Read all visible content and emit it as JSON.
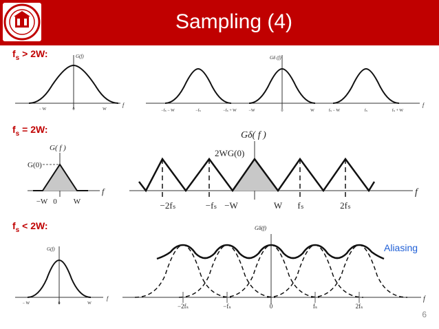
{
  "header": {
    "title": "Sampling (4)",
    "bg_color": "#c00000",
    "logo_icon": "university-seal-icon"
  },
  "cases": [
    {
      "label_main": "f",
      "label_sub": "s",
      "label_rest": " > 2W:"
    },
    {
      "label_main": "f",
      "label_sub": "s",
      "label_rest": " = 2W:"
    },
    {
      "label_main": "f",
      "label_sub": "s",
      "label_rest": " < 2W:"
    }
  ],
  "case1": {
    "left": {
      "ylabel": "G(f)",
      "xlabel": "f",
      "ticks": [
        "− W",
        "0",
        "W"
      ]
    },
    "right": {
      "ylabel": "Gδ (f)",
      "xlabel": "f",
      "ticks": [
        "−fₛ − W",
        "−fₛ",
        "−fₛ + W",
        "−W",
        "0",
        "W",
        "fₛ − W",
        "fₛ",
        "fₛ + W"
      ]
    }
  },
  "case2": {
    "left": {
      "ylabel": "G( f )",
      "peak_label": "G(0)",
      "xlabel": "f",
      "ticks": [
        "−W",
        "0",
        "W"
      ]
    },
    "right": {
      "ylabel": "Gδ( f )",
      "peak_label": "2WG(0)",
      "xlabel": "f",
      "ticks": [
        "−2fₛ",
        "−fₛ",
        "−W",
        "W",
        "fₛ",
        "2fₛ"
      ]
    }
  },
  "case3": {
    "left": {
      "ylabel": "G(f)",
      "xlabel": "f",
      "ticks": [
        "− W",
        "0",
        "W"
      ]
    },
    "right": {
      "ylabel": "Gδ(f)",
      "xlabel": "f",
      "ticks": [
        "−2fₛ",
        "−fₛ",
        "0",
        "fₛ",
        "2fₛ"
      ]
    },
    "annotation": "Aliasing",
    "annotation_color": "#1f5fd6"
  },
  "footer": {
    "page_number": "6"
  }
}
